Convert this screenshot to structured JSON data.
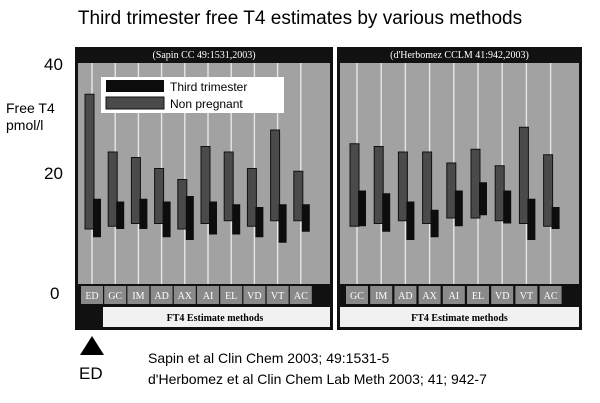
{
  "title": "Third trimester free T4 estimates by various methods",
  "y_axis": {
    "label_lines": [
      "Free T4",
      "pmol/l"
    ],
    "ticks": [
      "40",
      "20",
      "0"
    ]
  },
  "marker_label": "ED",
  "references": [
    "Sapin et al Clin Chem 2003; 49:1531-5",
    "d'Herbomez et al Clin Chem Lab Meth 2003; 41; 942-7"
  ],
  "colors": {
    "panel_bg": "#a2a2a2",
    "frame": "#111111",
    "grid": "#e6e6e6",
    "third_trimester": "#0d0d0d",
    "non_pregnant": "#4a4a4a",
    "footer_bg": "#f1f1f1"
  },
  "chart_data": [
    {
      "type": "bar",
      "subtype": "floating-range",
      "panel_title": "(Sapin CC 49:1531,2003)",
      "xlabel": "FT4 Estimate methods",
      "categories": [
        "ED",
        "GC",
        "IM",
        "AD",
        "AX",
        "AI",
        "EL",
        "VD",
        "VT",
        "AC"
      ],
      "ylim": [
        0,
        40
      ],
      "legend": {
        "placement": "top-left",
        "entries": [
          "Third trimester",
          "Non pregnant"
        ]
      },
      "series": [
        {
          "name": "Third trimester",
          "ranges": [
            [
              8.5,
              15.5
            ],
            [
              10,
              15
            ],
            [
              10,
              15.5
            ],
            [
              8.5,
              15
            ],
            [
              8,
              16
            ],
            [
              9,
              15
            ],
            [
              9,
              14.5
            ],
            [
              8.5,
              14
            ],
            [
              7.5,
              14.5
            ],
            [
              9.5,
              14.5
            ]
          ]
        },
        {
          "name": "Non pregnant",
          "ranges": [
            [
              10,
              34.5
            ],
            [
              10.5,
              24
            ],
            [
              11,
              23
            ],
            [
              11,
              21
            ],
            [
              10,
              19
            ],
            [
              11,
              25
            ],
            [
              11.5,
              24
            ],
            [
              10.5,
              21
            ],
            [
              11.5,
              28
            ],
            [
              11.5,
              20.5
            ]
          ]
        }
      ]
    },
    {
      "type": "bar",
      "subtype": "floating-range",
      "panel_title": "(d'Herbomez CCLM 41:942,2003)",
      "xlabel": "FT4 Estimate methods",
      "categories": [
        "GC",
        "IM",
        "AD",
        "AX",
        "AI",
        "EL",
        "VD",
        "VT",
        "AC"
      ],
      "ylim": [
        0,
        40
      ],
      "series": [
        {
          "name": "Third trimester",
          "ranges": [
            [
              10.5,
              17
            ],
            [
              9.5,
              16.5
            ],
            [
              8,
              15
            ],
            [
              8.5,
              13.5
            ],
            [
              10.5,
              17
            ],
            [
              12.5,
              18.5
            ],
            [
              11,
              17
            ],
            [
              8,
              15.5
            ],
            [
              10,
              14
            ]
          ]
        },
        {
          "name": "Non pregnant",
          "ranges": [
            [
              10.5,
              25.5
            ],
            [
              11,
              25
            ],
            [
              11.5,
              24
            ],
            [
              11,
              24
            ],
            [
              12,
              22
            ],
            [
              12,
              24.5
            ],
            [
              11.5,
              21.5
            ],
            [
              11,
              28.5
            ],
            [
              10.5,
              23.5
            ]
          ]
        }
      ]
    }
  ]
}
